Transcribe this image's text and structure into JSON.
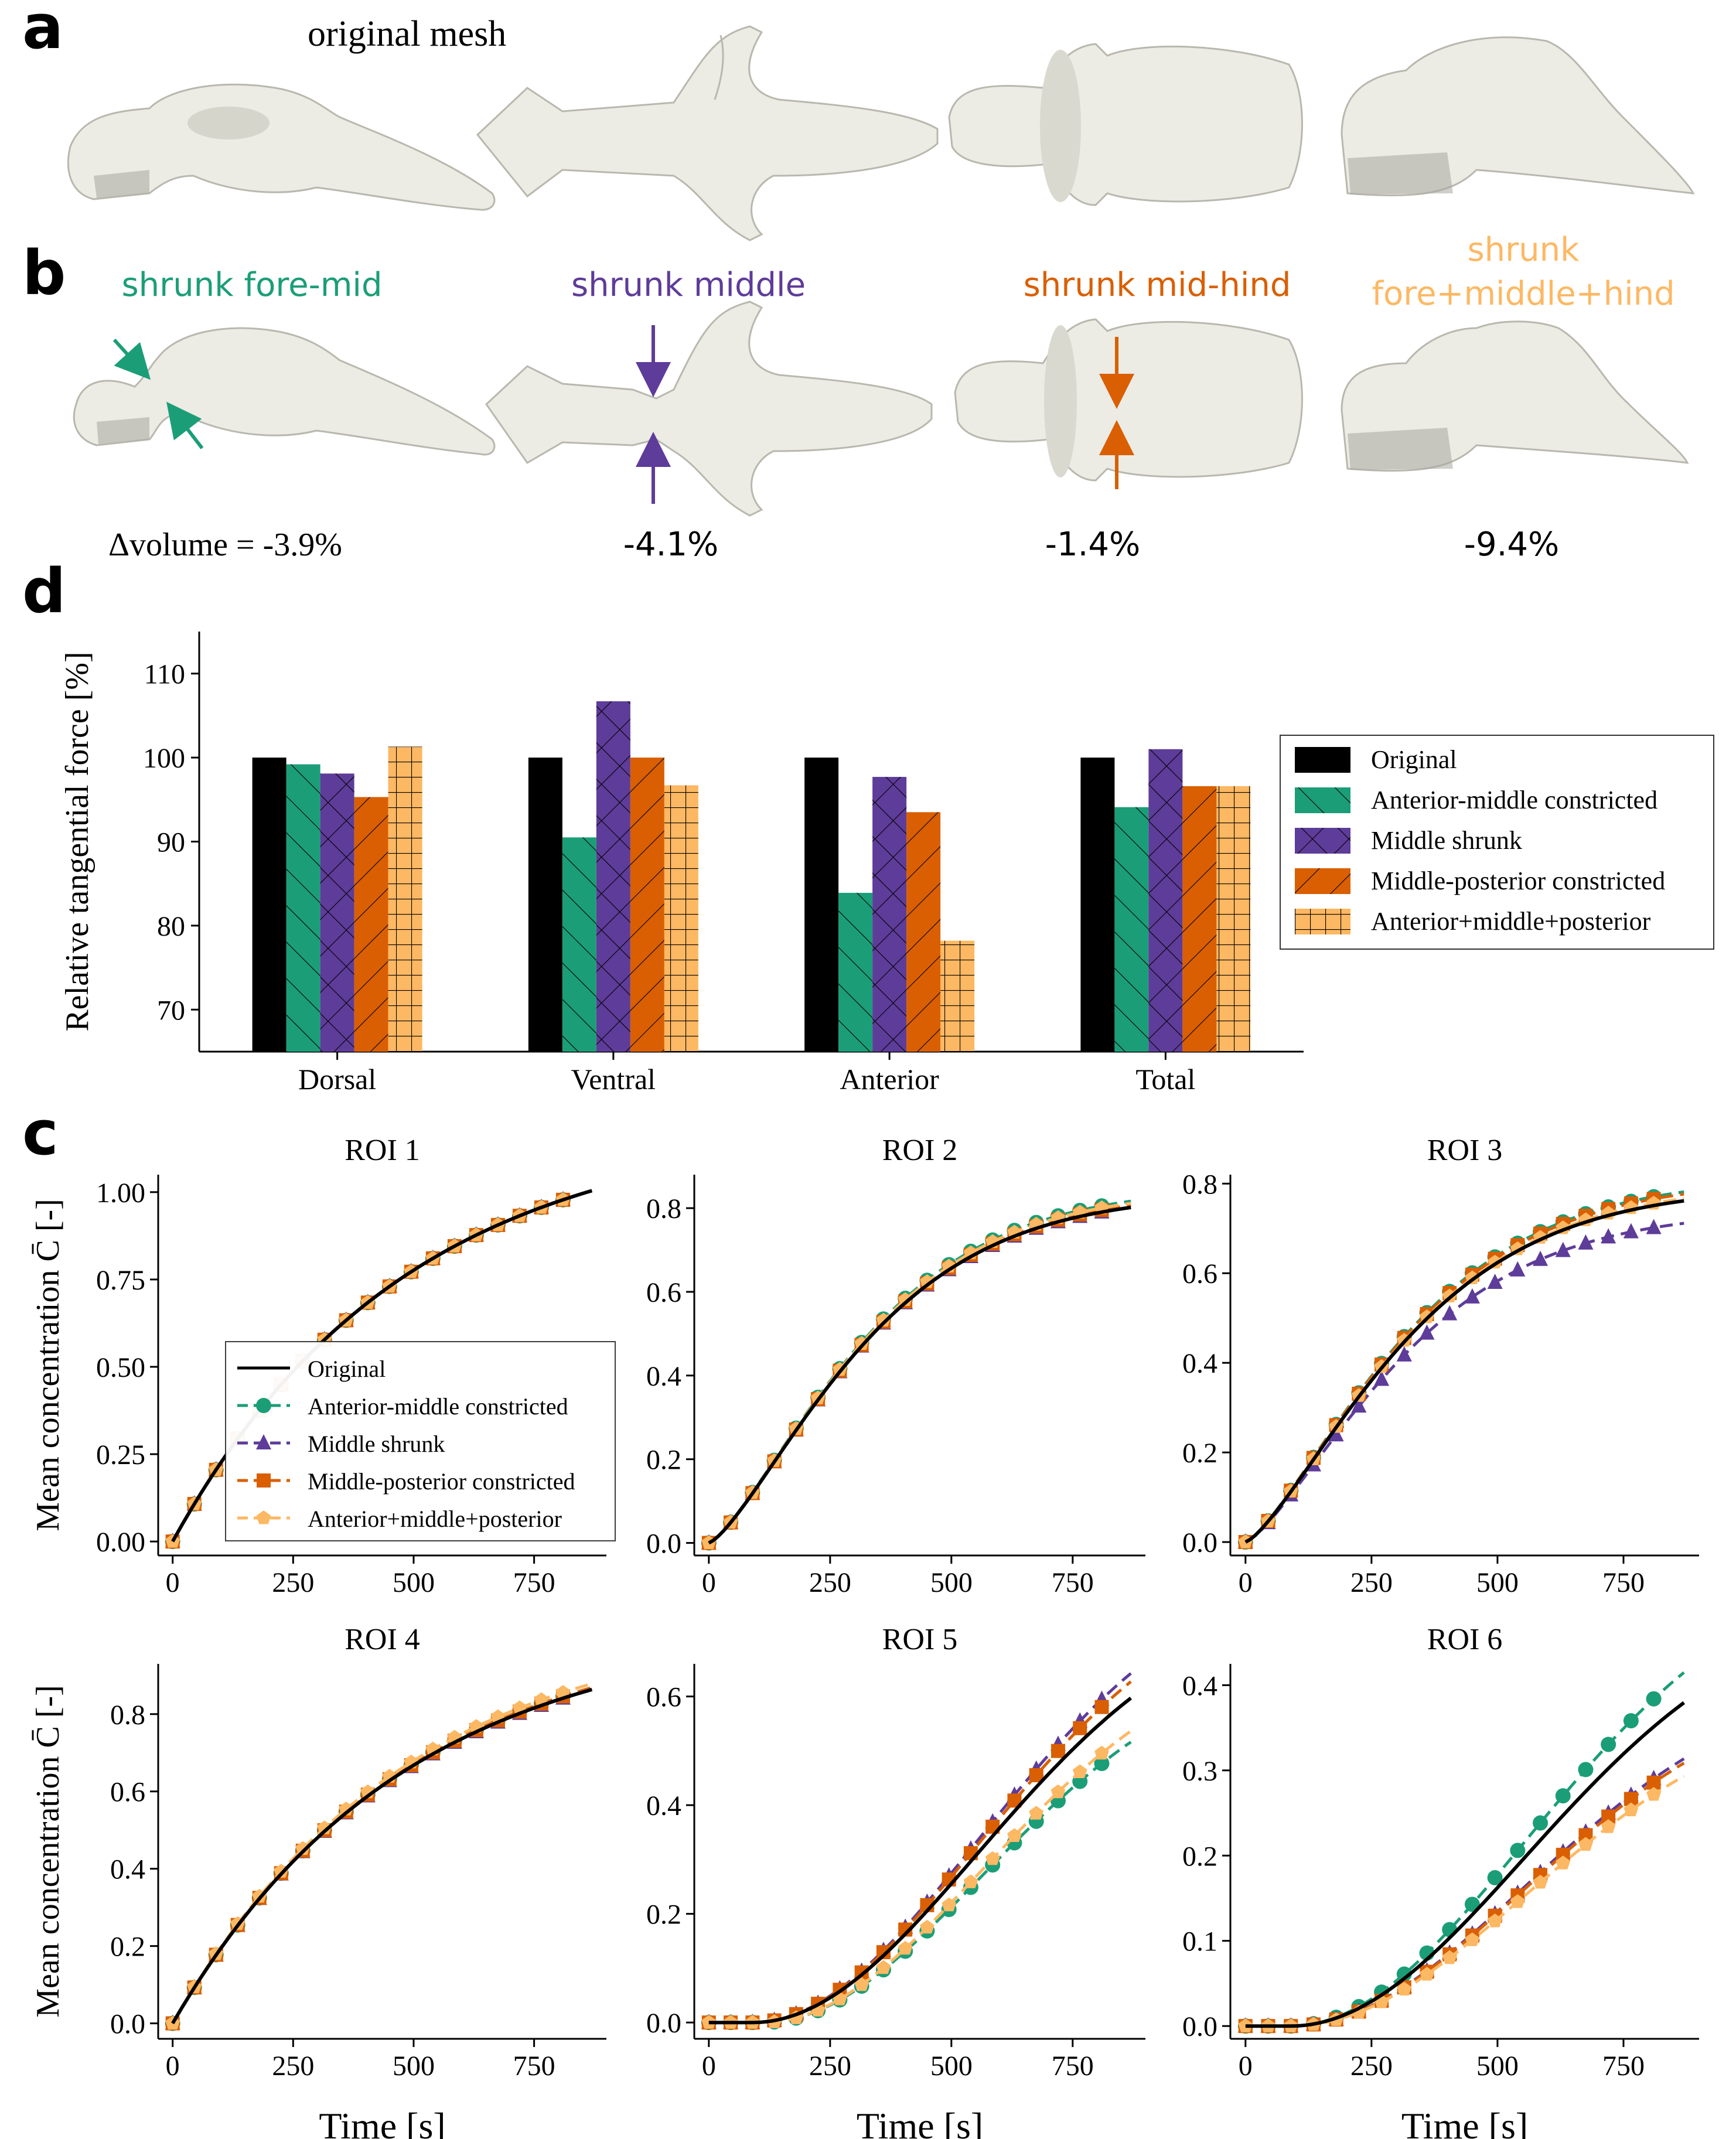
{
  "panel_a": {
    "letter": "a",
    "caption": "original mesh"
  },
  "panel_b": {
    "letter": "b",
    "labels": [
      {
        "text": "shrunk fore-mid",
        "color": "#1b9e77"
      },
      {
        "text": "shrunk middle",
        "color": "#5e3c99"
      },
      {
        "text": "shrunk mid-hind",
        "color": "#d95f02"
      },
      {
        "text": "shrunk",
        "text2": "fore+middle+hind",
        "color": "#fdb863"
      }
    ],
    "volume_changes": [
      "Δvolume = -3.9%",
      "-4.1%",
      "-1.4%",
      "-9.4%"
    ]
  },
  "colors": {
    "original": "#000000",
    "anterior_middle": "#1b9e77",
    "middle": "#5e3c99",
    "middle_posterior": "#d95f02",
    "all": "#fdb863"
  },
  "chart_data": [
    {
      "panel": "d",
      "type": "bar",
      "ylabel": "Relative tangential force [%]",
      "ylim": [
        65,
        115
      ],
      "yticks": [
        70,
        80,
        90,
        100,
        110
      ],
      "categories": [
        "Dorsal",
        "Ventral",
        "Anterior",
        "Total"
      ],
      "legend_position": "right",
      "series": [
        {
          "name": "Original",
          "color": "#000000",
          "hatch": "none",
          "values": [
            100,
            100,
            100,
            100
          ]
        },
        {
          "name": "Anterior-middle constricted",
          "color": "#1b9e77",
          "hatch": "backslash",
          "values": [
            99.2,
            90.5,
            83.9,
            94.1
          ]
        },
        {
          "name": "Middle shrunk",
          "color": "#5e3c99",
          "hatch": "cross",
          "values": [
            98.1,
            106.7,
            97.7,
            101.0
          ]
        },
        {
          "name": "Middle-posterior constricted",
          "color": "#d95f02",
          "hatch": "slash",
          "values": [
            95.3,
            100.0,
            93.5,
            96.6
          ]
        },
        {
          "name": "Anterior+middle+posterior",
          "color": "#fdb863",
          "hatch": "grid",
          "values": [
            101.3,
            96.7,
            78.2,
            96.6
          ]
        }
      ]
    },
    {
      "panel": "c",
      "type": "line",
      "ylabel": "Mean concentration C̄ [-]",
      "xlabel": "Time [s]",
      "xlim": [
        -30,
        900
      ],
      "xticks": [
        0,
        250,
        500,
        750
      ],
      "legend": [
        "Original",
        "Anterior-middle constricted",
        "Middle shrunk",
        "Middle-posterior constricted",
        "Anterior+middle+posterior"
      ],
      "legend_position": "lower-right (ROI 1)",
      "subplots": [
        {
          "title": "ROI 1",
          "ylim": [
            -0.04,
            1.05
          ],
          "yticks": [
            0.0,
            0.25,
            0.5,
            0.75,
            1.0
          ],
          "ytick_labels": [
            "0.00",
            "0.25",
            "0.50",
            "0.75",
            "1.00"
          ],
          "ymax": [
            1.0,
            1.0,
            1.0,
            1.0,
            1.0
          ],
          "lag": [
            0,
            0,
            0,
            0,
            0
          ],
          "shape": "saturating"
        },
        {
          "title": "ROI 2",
          "ylim": [
            -0.03,
            0.88
          ],
          "yticks": [
            0.0,
            0.2,
            0.4,
            0.6,
            0.8
          ],
          "ytick_labels": [
            "0.0",
            "0.2",
            "0.4",
            "0.6",
            "0.8"
          ],
          "ymax": [
            0.8,
            0.815,
            0.8,
            0.805,
            0.81
          ],
          "lag": [
            0,
            0,
            0,
            0,
            0
          ],
          "shape": "sigmoid"
        },
        {
          "title": "ROI 3",
          "ylim": [
            -0.03,
            0.82
          ],
          "yticks": [
            0.0,
            0.2,
            0.4,
            0.6,
            0.8
          ],
          "ytick_labels": [
            "0.0",
            "0.2",
            "0.4",
            "0.6",
            "0.8"
          ],
          "ymax": [
            0.76,
            0.78,
            0.71,
            0.775,
            0.765
          ],
          "lag": [
            0,
            0,
            0,
            0,
            0
          ],
          "shape": "sigmoid"
        },
        {
          "title": "ROI 4",
          "ylim": [
            -0.04,
            0.93
          ],
          "yticks": [
            0.0,
            0.2,
            0.4,
            0.6,
            0.8
          ],
          "ytick_labels": [
            "0.0",
            "0.2",
            "0.4",
            "0.6",
            "0.8"
          ],
          "ymax": [
            0.86,
            0.865,
            0.86,
            0.865,
            0.875
          ],
          "lag": [
            0,
            0,
            0,
            0,
            0
          ],
          "shape": "saturating"
        },
        {
          "title": "ROI 5",
          "ylim": [
            -0.03,
            0.66
          ],
          "yticks": [
            0.0,
            0.2,
            0.4,
            0.6
          ],
          "ytick_labels": [
            "0.0",
            "0.2",
            "0.4",
            "0.6"
          ],
          "ymax": [
            0.59,
            0.51,
            0.635,
            0.62,
            0.53
          ],
          "lag": [
            0,
            20,
            0,
            0,
            20
          ],
          "shape": "delayed"
        },
        {
          "title": "ROI 6",
          "ylim": [
            -0.015,
            0.425
          ],
          "yticks": [
            0.0,
            0.1,
            0.2,
            0.3,
            0.4
          ],
          "ytick_labels": [
            "0.0",
            "0.1",
            "0.2",
            "0.3",
            "0.4"
          ],
          "ymax": [
            0.375,
            0.41,
            0.31,
            0.305,
            0.29
          ],
          "lag": [
            0,
            0,
            0,
            0,
            0
          ],
          "shape": "delayed"
        }
      ]
    }
  ]
}
